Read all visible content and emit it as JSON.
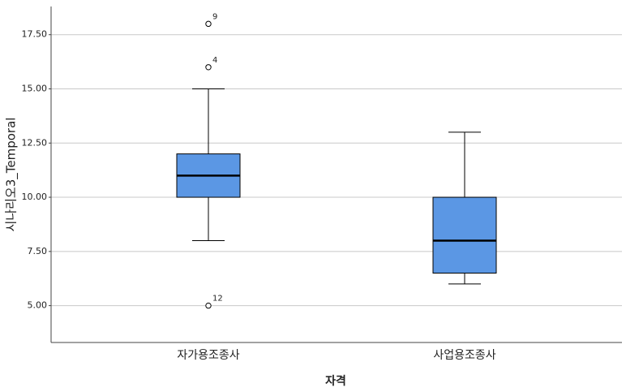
{
  "chart_data": {
    "type": "box",
    "x_label": "자격",
    "y_label": "시나리오3_Temporal",
    "categories": [
      "자가용조종사",
      "사업용조종사"
    ],
    "color": "#5b97e4",
    "boxes": [
      {
        "min": 8,
        "q1": 10,
        "median": 11,
        "q3": 12,
        "max": 15,
        "outliers": [
          18,
          16,
          5
        ],
        "outlier_labels": [
          "9",
          "4",
          "12"
        ]
      },
      {
        "min": 6,
        "q1": 6.5,
        "median": 8,
        "q3": 10,
        "max": 13,
        "outliers": [],
        "outlier_labels": []
      }
    ],
    "ylim": [
      3.3,
      18.8
    ],
    "yticks": [
      {
        "value": 5,
        "label": "5.00"
      },
      {
        "value": 7.5,
        "label": "7.50"
      },
      {
        "value": 10,
        "label": "10.00"
      },
      {
        "value": 12.5,
        "label": "12.50"
      },
      {
        "value": 15,
        "label": "15.00"
      },
      {
        "value": 17.5,
        "label": "17.50"
      }
    ],
    "grid": true
  }
}
